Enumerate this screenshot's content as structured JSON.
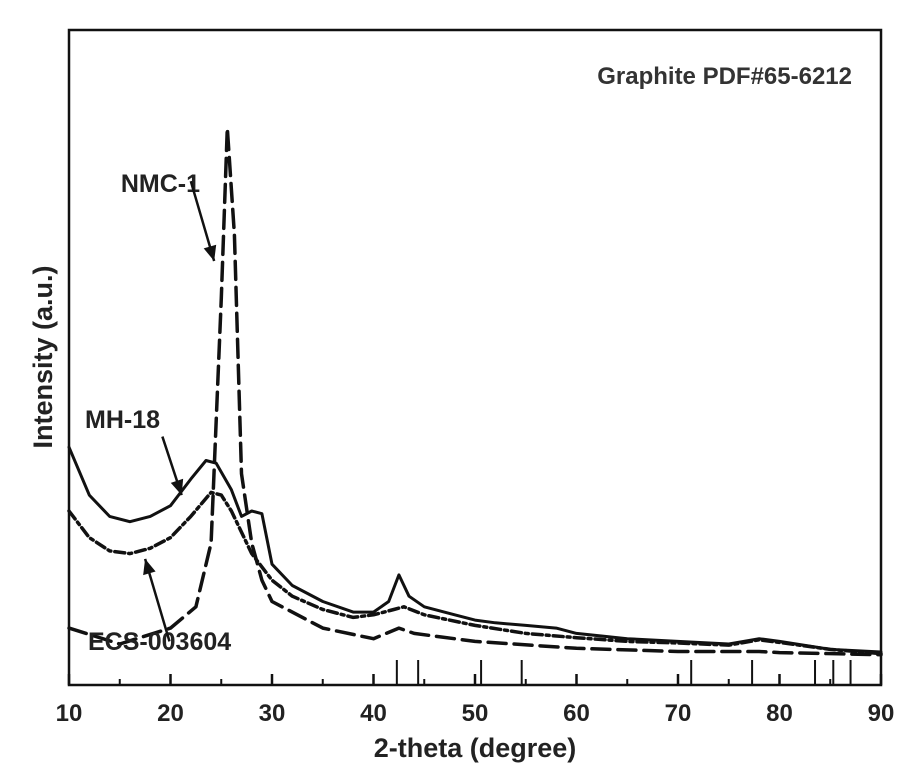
{
  "chart_data": {
    "type": "line",
    "title": "",
    "xlabel": "2-theta (degree)",
    "ylabel": "Intensity (a.u.)",
    "xlim": [
      10,
      90
    ],
    "ylim": [
      0,
      100
    ],
    "x_ticks": [
      10,
      20,
      30,
      40,
      50,
      60,
      70,
      80,
      90
    ],
    "y_ticks_shown": false,
    "grid": false,
    "series": [
      {
        "name": "NMC-1",
        "style": "dashed",
        "points": [
          [
            10,
            6
          ],
          [
            15,
            3
          ],
          [
            20,
            6
          ],
          [
            22.5,
            10
          ],
          [
            24,
            22
          ],
          [
            25,
            68
          ],
          [
            25.6,
            100
          ],
          [
            26.3,
            80
          ],
          [
            27,
            35
          ],
          [
            28,
            22
          ],
          [
            29,
            15
          ],
          [
            30,
            11
          ],
          [
            35,
            6
          ],
          [
            40,
            4
          ],
          [
            42.5,
            6
          ],
          [
            44,
            5
          ],
          [
            50,
            3.5
          ],
          [
            60,
            2.2
          ],
          [
            70,
            1.6
          ],
          [
            78,
            1.6
          ],
          [
            80,
            1.4
          ],
          [
            90,
            1
          ]
        ]
      },
      {
        "name": "MH-18",
        "style": "solid",
        "points": [
          [
            10,
            40
          ],
          [
            12,
            31
          ],
          [
            14,
            27
          ],
          [
            16,
            26
          ],
          [
            18,
            27
          ],
          [
            20,
            29
          ],
          [
            22,
            34
          ],
          [
            23.5,
            37.5
          ],
          [
            24.5,
            37
          ],
          [
            26,
            32
          ],
          [
            27,
            27
          ],
          [
            28,
            28
          ],
          [
            29,
            27.5
          ],
          [
            30,
            18
          ],
          [
            32,
            14
          ],
          [
            35,
            11
          ],
          [
            38,
            9
          ],
          [
            40,
            9
          ],
          [
            41.5,
            11
          ],
          [
            42.5,
            16
          ],
          [
            43.5,
            12
          ],
          [
            45,
            10
          ],
          [
            48,
            8.5
          ],
          [
            50,
            7.5
          ],
          [
            52,
            7
          ],
          [
            55,
            6.5
          ],
          [
            58,
            6
          ],
          [
            60,
            5
          ],
          [
            65,
            4
          ],
          [
            70,
            3.5
          ],
          [
            75,
            3
          ],
          [
            78,
            4
          ],
          [
            80,
            3.5
          ],
          [
            85,
            2
          ],
          [
            90,
            1.5
          ]
        ]
      },
      {
        "name": "ECS-003604",
        "style": "dash-dot",
        "points": [
          [
            10,
            28
          ],
          [
            12,
            23
          ],
          [
            14,
            20.5
          ],
          [
            16,
            20
          ],
          [
            18,
            21
          ],
          [
            20,
            23
          ],
          [
            22,
            27
          ],
          [
            24,
            31.5
          ],
          [
            25,
            31
          ],
          [
            26,
            28
          ],
          [
            28,
            20
          ],
          [
            30,
            15
          ],
          [
            32,
            12
          ],
          [
            35,
            9.5
          ],
          [
            38,
            8
          ],
          [
            40,
            8.5
          ],
          [
            42,
            9.5
          ],
          [
            43,
            10
          ],
          [
            45,
            8.5
          ],
          [
            50,
            6.5
          ],
          [
            55,
            5
          ],
          [
            60,
            4.2
          ],
          [
            65,
            3.5
          ],
          [
            70,
            3.2
          ],
          [
            75,
            2.8
          ],
          [
            78,
            3.8
          ],
          [
            80,
            3.3
          ],
          [
            85,
            2
          ],
          [
            90,
            1.2
          ]
        ]
      }
    ],
    "annotations": [
      {
        "text": "NMC-1",
        "arrow_from": [
          22,
          90
        ],
        "arrow_to": [
          24.3,
          75
        ]
      },
      {
        "text": "MH-18",
        "arrow_from": [
          19.2,
          42
        ],
        "arrow_to": [
          21.1,
          31
        ]
      },
      {
        "text": "ECS-003604",
        "arrow_from": [
          19.9,
          3.5
        ],
        "arrow_to": [
          17.5,
          19
        ]
      }
    ],
    "reference": {
      "label": "Graphite PDF#65-6212",
      "peaks": [
        42.3,
        44.4,
        50.6,
        54.6,
        71.3,
        77.3,
        83.5,
        85.3,
        87.0
      ]
    }
  }
}
